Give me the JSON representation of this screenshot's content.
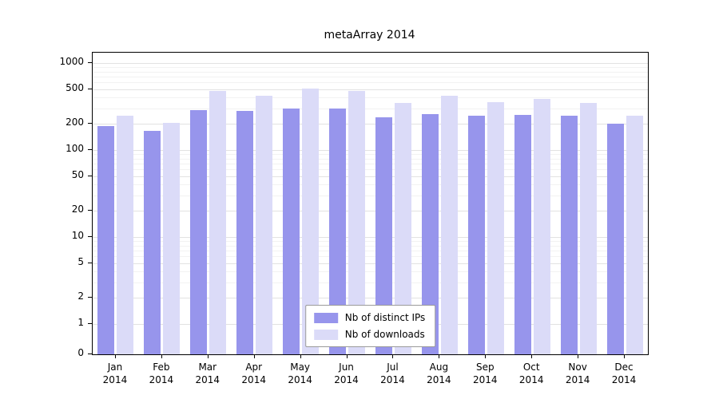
{
  "title": "metaArray 2014",
  "chart_data": {
    "type": "bar",
    "scale": "symlog",
    "title": "metaArray 2014",
    "xlabel": "",
    "ylabel": "",
    "categories": [
      "Jan",
      "Feb",
      "Mar",
      "Apr",
      "May",
      "Jun",
      "Jul",
      "Aug",
      "Sep",
      "Oct",
      "Nov",
      "Dec"
    ],
    "year_label": "2014",
    "series": [
      {
        "name": "Nb of distinct IPs",
        "color": "#9795ec",
        "values": [
          190,
          165,
          290,
          280,
          300,
          300,
          240,
          260,
          250,
          255,
          250,
          200
        ]
      },
      {
        "name": "Nb of downloads",
        "color": "#dbdbf8",
        "values": [
          250,
          205,
          480,
          420,
          505,
          480,
          350,
          425,
          355,
          385,
          350,
          250
        ]
      }
    ],
    "y_ticks": [
      0,
      1,
      2,
      5,
      10,
      20,
      50,
      100,
      200,
      500,
      1000
    ],
    "y_minor_ticks": [
      3,
      4,
      6,
      7,
      8,
      9,
      30,
      40,
      60,
      70,
      80,
      90,
      300,
      400,
      600,
      700,
      800,
      900
    ],
    "ylim": [
      0,
      1300
    ],
    "grid": true,
    "legend_position": "lower center"
  }
}
